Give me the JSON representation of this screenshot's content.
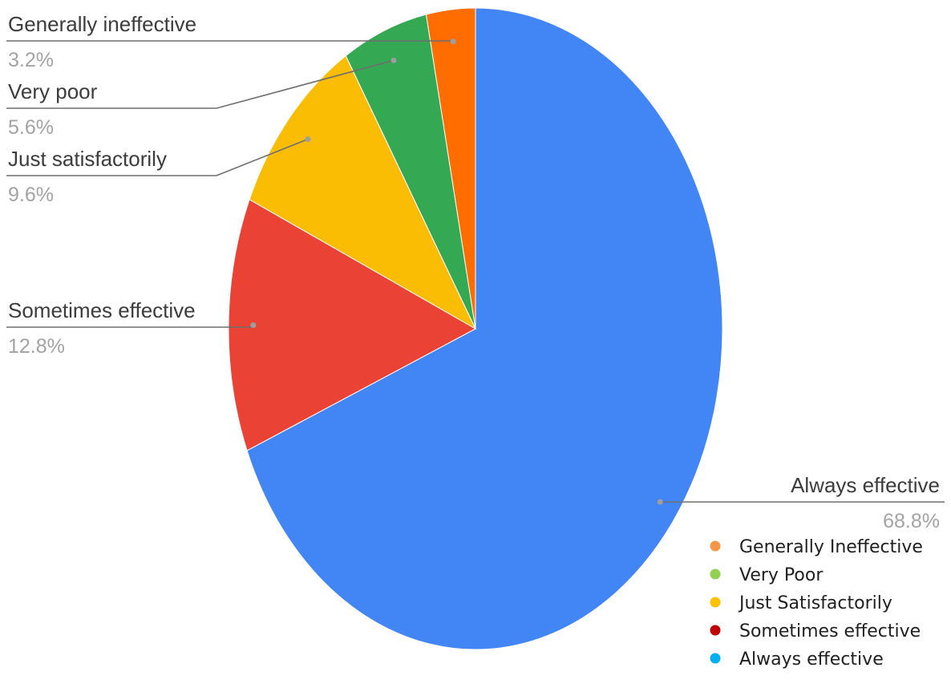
{
  "chart_data": {
    "type": "pie",
    "title": "",
    "slices": [
      {
        "label": "Always effective",
        "value": 68.8,
        "value_label": "68.8%",
        "color": "#4285f4"
      },
      {
        "label": "Sometimes effective",
        "value": 12.8,
        "value_label": "12.8%",
        "color": "#ea4335"
      },
      {
        "label": "Just satisfactorily",
        "value": 9.6,
        "value_label": "9.6%",
        "color": "#fbbc04"
      },
      {
        "label": "Very poor",
        "value": 5.6,
        "value_label": "5.6%",
        "color": "#34a853"
      },
      {
        "label": "Generally ineffective",
        "value": 3.2,
        "value_label": "3.2%",
        "color": "#ff6d01"
      }
    ],
    "legend": {
      "placement": "bottom-right",
      "items": [
        {
          "label": "Generally Ineffective",
          "color": "#f79646"
        },
        {
          "label": "Very Poor",
          "color": "#92d050"
        },
        {
          "label": "Just Satisfactorily",
          "color": "#ffc000"
        },
        {
          "label": "Sometimes effective",
          "color": "#c00000"
        },
        {
          "label": "Always effective",
          "color": "#00b0f0"
        }
      ]
    }
  }
}
